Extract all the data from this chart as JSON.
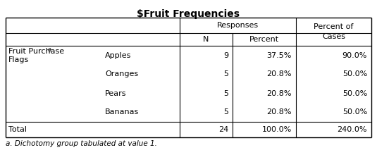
{
  "title": "$Fruit Frequencies",
  "footnote": "a. Dichotomy group tabulated at value 1.",
  "rows": [
    [
      "Fruit Purchase\nFlags",
      "a",
      "Apples",
      "9",
      "37.5%",
      "90.0%"
    ],
    [
      "",
      "",
      "Oranges",
      "5",
      "20.8%",
      "50.0%"
    ],
    [
      "",
      "",
      "Pears",
      "5",
      "20.8%",
      "50.0%"
    ],
    [
      "",
      "",
      "Bananas",
      "5",
      "20.8%",
      "50.0%"
    ],
    [
      "Total",
      "",
      "",
      "24",
      "100.0%",
      "240.0%"
    ]
  ],
  "background_color": "#ffffff",
  "border_color": "#000000",
  "font_size": 8.0,
  "title_font_size": 10.0
}
